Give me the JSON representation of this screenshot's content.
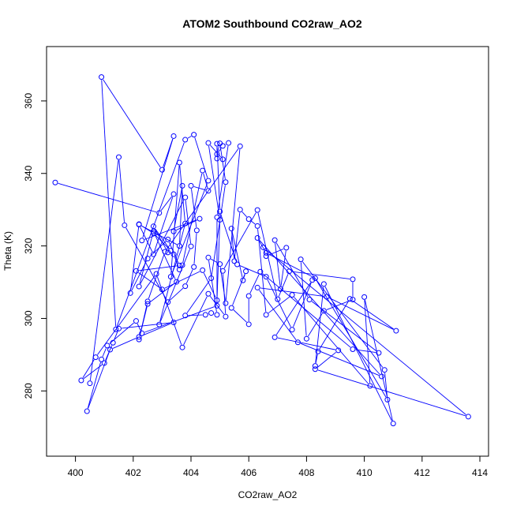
{
  "chart_data": {
    "type": "line",
    "title": "ATOM2 Southbound CO2raw_AO2",
    "xlabel": "CO2raw_AO2",
    "ylabel": "Theta (K)",
    "xlim": [
      399.0,
      414.3
    ],
    "ylim": [
      262.0,
      375.0
    ],
    "x_ticks": [
      400,
      402,
      404,
      406,
      408,
      410,
      412,
      414
    ],
    "y_ticks": [
      280,
      300,
      320,
      340,
      360
    ],
    "grid": false,
    "legend": "none",
    "markers": "open-circle",
    "series_color": "#0000ff",
    "series": [
      {
        "points": [
          [
            399.3,
            337.5
          ],
          [
            402.9,
            329.1
          ],
          [
            403.4,
            334.3
          ],
          [
            402.7,
            317.7
          ],
          [
            402.2,
            325.9
          ],
          [
            403.6,
            320.0
          ],
          [
            403.7,
            336.6
          ],
          [
            403.4,
            324.0
          ],
          [
            404.3,
            327.5
          ],
          [
            402.3,
            321.5
          ],
          [
            403.4,
            350.3
          ],
          [
            403.0,
            341.0
          ],
          [
            400.9,
            366.6
          ],
          [
            401.4,
            297.0
          ],
          [
            403.8,
            349.3
          ],
          [
            404.1,
            350.7
          ],
          [
            404.6,
            338.0
          ],
          [
            403.3,
            311.5
          ],
          [
            403.6,
            343.0
          ],
          [
            403.8,
            326.2
          ],
          [
            402.9,
            298.3
          ],
          [
            404.0,
            319.9
          ],
          [
            403.8,
            333.4
          ],
          [
            402.2,
            308.8
          ],
          [
            402.7,
            324.0
          ],
          [
            403.5,
            310.1
          ],
          [
            402.5,
            304.0
          ],
          [
            402.2,
            294.2
          ],
          [
            402.5,
            304.7
          ],
          [
            403.1,
            318.4
          ],
          [
            405.7,
            347.5
          ],
          [
            405.2,
            304.2
          ],
          [
            405.0,
            315.0
          ],
          [
            404.6,
            316.8
          ],
          [
            404.9,
            301.0
          ],
          [
            404.7,
            301.5
          ],
          [
            404.5,
            301.0
          ],
          [
            403.8,
            300.8
          ],
          [
            404.7,
            311.1
          ],
          [
            405.2,
            337.6
          ],
          [
            405.0,
            348.3
          ],
          [
            404.9,
            345.3
          ],
          [
            405.1,
            347.6
          ],
          [
            405.3,
            348.4
          ],
          [
            404.9,
            327.9
          ],
          [
            404.9,
            303.5
          ],
          [
            402.3,
            295.9
          ],
          [
            402.1,
            299.3
          ],
          [
            401.1,
            292.5
          ],
          [
            400.9,
            288.7
          ],
          [
            400.4,
            274.4
          ],
          [
            401.2,
            291.4
          ],
          [
            402.2,
            294.9
          ],
          [
            403.4,
            298.9
          ],
          [
            401.5,
            297.2
          ],
          [
            401.3,
            293.3
          ],
          [
            401.0,
            287.7
          ],
          [
            400.2,
            282.9
          ],
          [
            400.7,
            289.3
          ],
          [
            402.8,
            312.3
          ],
          [
            403.7,
            292.0
          ],
          [
            404.6,
            306.8
          ],
          [
            405.2,
            300.5
          ],
          [
            405.1,
            313.1
          ],
          [
            406.3,
            329.9
          ],
          [
            407.0,
            305.3
          ],
          [
            407.4,
            313.0
          ],
          [
            409.6,
            310.8
          ],
          [
            409.6,
            305.2
          ],
          [
            408.6,
            302.1
          ],
          [
            408.0,
            294.4
          ],
          [
            407.8,
            316.3
          ],
          [
            410.7,
            285.8
          ],
          [
            410.8,
            277.6
          ],
          [
            408.3,
            311.1
          ],
          [
            406.6,
            318.1
          ],
          [
            406.3,
            322.2
          ],
          [
            410.6,
            284.0
          ],
          [
            407.7,
            293.4
          ],
          [
            406.3,
            308.5
          ],
          [
            408.7,
            306.0
          ],
          [
            411.1,
            296.6
          ],
          [
            409.5,
            305.4
          ],
          [
            408.4,
            290.9
          ],
          [
            408.3,
            286.9
          ],
          [
            408.6,
            309.5
          ],
          [
            411.0,
            271.0
          ],
          [
            410.0,
            305.9
          ],
          [
            410.2,
            281.4
          ],
          [
            407.5,
            306.5
          ],
          [
            406.6,
            301.0
          ],
          [
            406.3,
            325.5
          ],
          [
            406.0,
            327.4
          ],
          [
            405.7,
            330.0
          ],
          [
            405.5,
            315.8
          ],
          [
            405.4,
            324.8
          ],
          [
            405.8,
            310.5
          ],
          [
            405.9,
            313.0
          ],
          [
            405.4,
            302.9
          ],
          [
            406.0,
            298.4
          ],
          [
            406.0,
            306.2
          ],
          [
            406.4,
            312.9
          ],
          [
            409.6,
            291.5
          ],
          [
            410.5,
            290.5
          ],
          [
            408.1,
            305.2
          ],
          [
            406.9,
            321.6
          ],
          [
            407.1,
            308.1
          ],
          [
            407.3,
            319.5
          ],
          [
            406.6,
            317.2
          ],
          [
            406.5,
            319.6
          ],
          [
            413.6,
            272.9
          ],
          [
            408.3,
            286.0
          ],
          [
            409.1,
            291.2
          ],
          [
            406.9,
            294.8
          ],
          [
            408.2,
            310.6
          ],
          [
            407.5,
            296.9
          ],
          [
            406.6,
            311.5
          ],
          [
            405.6,
            314.9
          ],
          [
            405.0,
            329.5
          ],
          [
            404.9,
            348.2
          ],
          [
            404.9,
            344.1
          ],
          [
            405.1,
            343.9
          ],
          [
            404.6,
            348.4
          ],
          [
            405.0,
            327.2
          ],
          [
            404.9,
            305.0
          ],
          [
            404.4,
            313.3
          ],
          [
            403.0,
            308.0
          ],
          [
            402.1,
            313.1
          ],
          [
            403.6,
            314.6
          ],
          [
            403.2,
            321.8
          ],
          [
            402.5,
            316.5
          ],
          [
            401.9,
            307.0
          ],
          [
            402.2,
            326.0
          ],
          [
            402.7,
            323.5
          ],
          [
            403.3,
            318.7
          ],
          [
            402.7,
            325.4
          ],
          [
            403.2,
            318.2
          ],
          [
            403.4,
            317.7
          ],
          [
            403.6,
            313.5
          ],
          [
            403.7,
            314.7
          ],
          [
            404.4,
            340.8
          ],
          [
            404.6,
            335.2
          ],
          [
            404.0,
            336.6
          ],
          [
            404.2,
            324.3
          ],
          [
            404.1,
            314.2
          ],
          [
            403.8,
            308.9
          ],
          [
            403.2,
            304.5
          ],
          [
            401.7,
            325.7
          ],
          [
            401.5,
            344.5
          ],
          [
            400.5,
            282.1
          ]
        ]
      }
    ]
  }
}
